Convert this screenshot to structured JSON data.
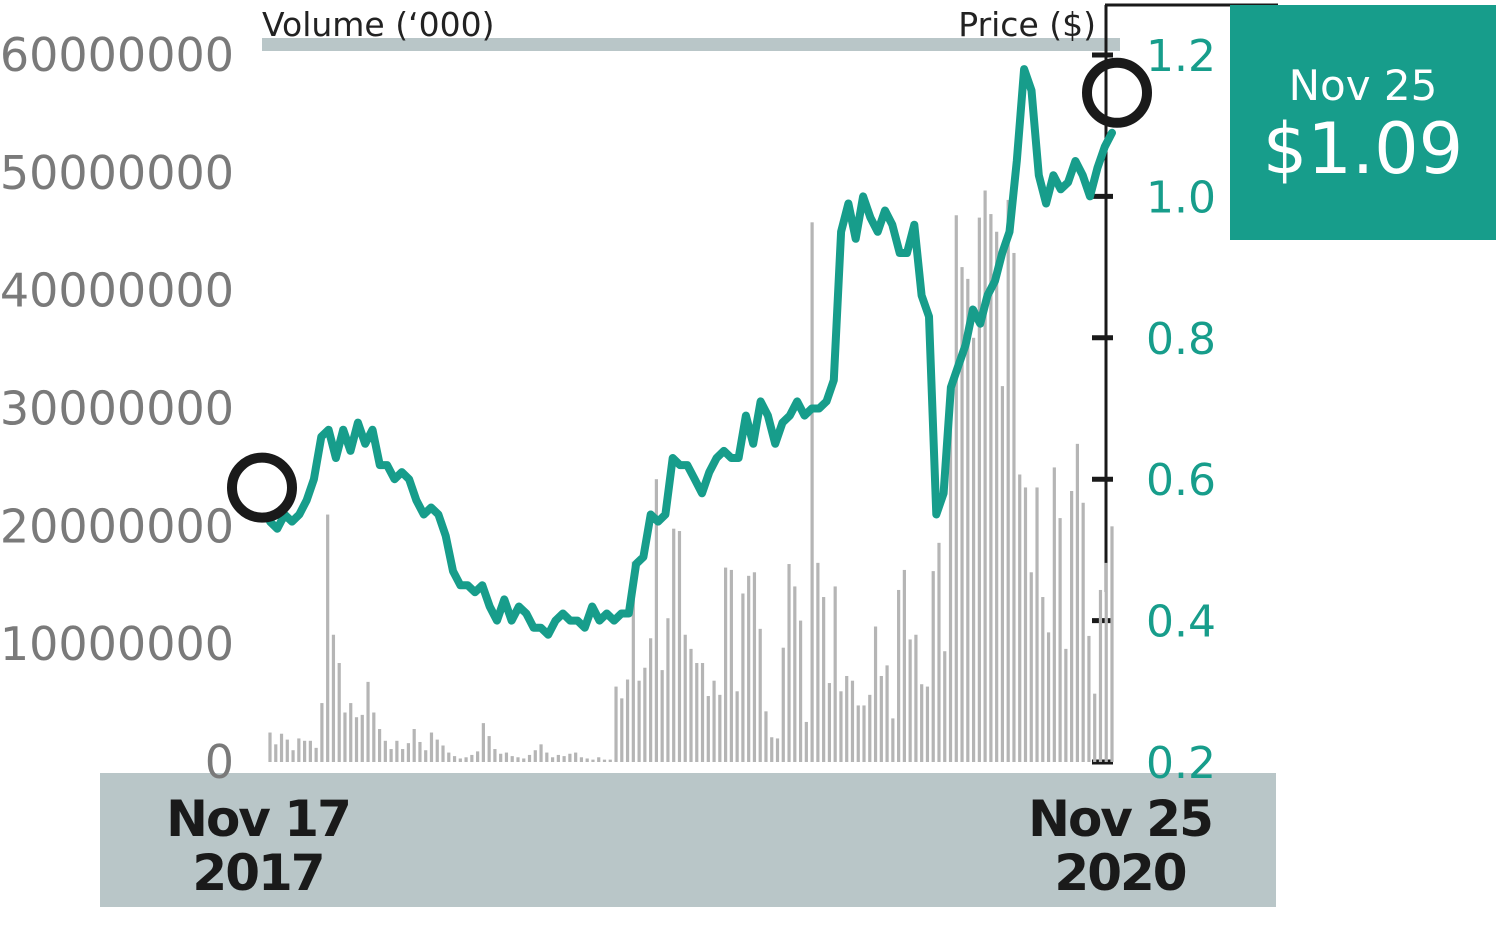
{
  "chart_data": {
    "type": "line+bar",
    "headers": {
      "volume": "Volume (‘000)",
      "price": "Price ($)"
    },
    "volume_axis": {
      "ticks": [
        0,
        10000000,
        20000000,
        30000000,
        40000000,
        50000000,
        60000000
      ],
      "tick_labels": [
        "0",
        "10000000",
        "20000000",
        "30000000",
        "40000000",
        "50000000",
        "60000000"
      ],
      "range": [
        0,
        60000000
      ]
    },
    "price_axis": {
      "ticks": [
        0.2,
        0.4,
        0.6,
        0.8,
        1.0,
        1.2
      ],
      "tick_labels": [
        "0.2",
        "0.4",
        "0.6",
        "0.8",
        "1.0",
        "1.2"
      ],
      "range": [
        0.2,
        1.2
      ]
    },
    "x_labels": {
      "start": {
        "line1": "Nov 17",
        "line2": "2017"
      },
      "end": {
        "line1": "Nov 25",
        "line2": "2020"
      }
    },
    "callout": {
      "date": "Nov 25",
      "price": "$1.09"
    },
    "colors": {
      "price_line": "#179d8b",
      "volume_bars": "#b5b5b5",
      "axis_band": "#b9c6c8",
      "callout_bg": "#179d8b"
    },
    "price_series": {
      "name": "Price",
      "values": [
        0.54,
        0.53,
        0.55,
        0.54,
        0.55,
        0.57,
        0.6,
        0.66,
        0.67,
        0.63,
        0.67,
        0.64,
        0.68,
        0.65,
        0.67,
        0.62,
        0.62,
        0.6,
        0.61,
        0.6,
        0.57,
        0.55,
        0.56,
        0.55,
        0.52,
        0.47,
        0.45,
        0.45,
        0.44,
        0.45,
        0.42,
        0.4,
        0.43,
        0.4,
        0.42,
        0.41,
        0.39,
        0.39,
        0.38,
        0.4,
        0.41,
        0.4,
        0.4,
        0.39,
        0.42,
        0.4,
        0.41,
        0.4,
        0.41,
        0.41,
        0.48,
        0.49,
        0.55,
        0.54,
        0.55,
        0.63,
        0.62,
        0.62,
        0.6,
        0.58,
        0.61,
        0.63,
        0.64,
        0.63,
        0.63,
        0.69,
        0.65,
        0.71,
        0.69,
        0.65,
        0.68,
        0.69,
        0.71,
        0.69,
        0.7,
        0.7,
        0.71,
        0.74,
        0.95,
        0.99,
        0.94,
        1.0,
        0.97,
        0.95,
        0.98,
        0.96,
        0.92,
        0.92,
        0.96,
        0.86,
        0.83,
        0.55,
        0.58,
        0.73,
        0.76,
        0.79,
        0.84,
        0.82,
        0.86,
        0.88,
        0.92,
        0.95,
        1.05,
        1.18,
        1.15,
        1.03,
        0.99,
        1.03,
        1.01,
        1.02,
        1.05,
        1.03,
        1.0,
        1.04,
        1.07,
        1.09
      ]
    },
    "volume_series": {
      "name": "Volume",
      "values": [
        2500000,
        1500000,
        2400000,
        1900000,
        1000000,
        2000000,
        1800000,
        1800000,
        1200000,
        5000000,
        21000000,
        10800000,
        8400000,
        4200000,
        5000000,
        3800000,
        4000000,
        6800000,
        4200000,
        2800000,
        1800000,
        1100000,
        1800000,
        1100000,
        1600000,
        2800000,
        1700000,
        1000000,
        2500000,
        1900000,
        1400000,
        800000,
        500000,
        300000,
        400000,
        600000,
        900000,
        3300000,
        2200000,
        1100000,
        700000,
        800000,
        500000,
        400000,
        300000,
        600000,
        1000000,
        1500000,
        800000,
        400000,
        600000,
        500000,
        700000,
        800000,
        400000,
        300000,
        200000,
        400000,
        200000,
        200000,
        6400000,
        5400000,
        7000000,
        17000000,
        6900000,
        8000000,
        10500000,
        24000000,
        7800000,
        12200000,
        19800000,
        19600000,
        10800000,
        9600000,
        8400000,
        8400000,
        5600000,
        6900000,
        5700000,
        16500000,
        16300000,
        6000000,
        14300000,
        15800000,
        16100000,
        11300000,
        4300000,
        2100000,
        2000000,
        9700000,
        16800000,
        14900000,
        12000000,
        3400000,
        45800000,
        16900000,
        14000000,
        6700000,
        14900000,
        6000000,
        7300000,
        6900000,
        4800000,
        4800000,
        5700000,
        11500000,
        7300000,
        8200000,
        3700000,
        14600000,
        16300000,
        10400000,
        10800000,
        6600000,
        6400000,
        16200000,
        18600000,
        9400000,
        29700000,
        46400000,
        42000000,
        41000000,
        36000000,
        46200000,
        48500000,
        46500000,
        45000000,
        31900000,
        47700000,
        43200000,
        24400000,
        23300000,
        16100000,
        23300000,
        14000000,
        11000000,
        25000000,
        20700000,
        9600000,
        23000000,
        27000000,
        22000000,
        10700000,
        5800000,
        14600000,
        16900000,
        20000000
      ]
    }
  }
}
